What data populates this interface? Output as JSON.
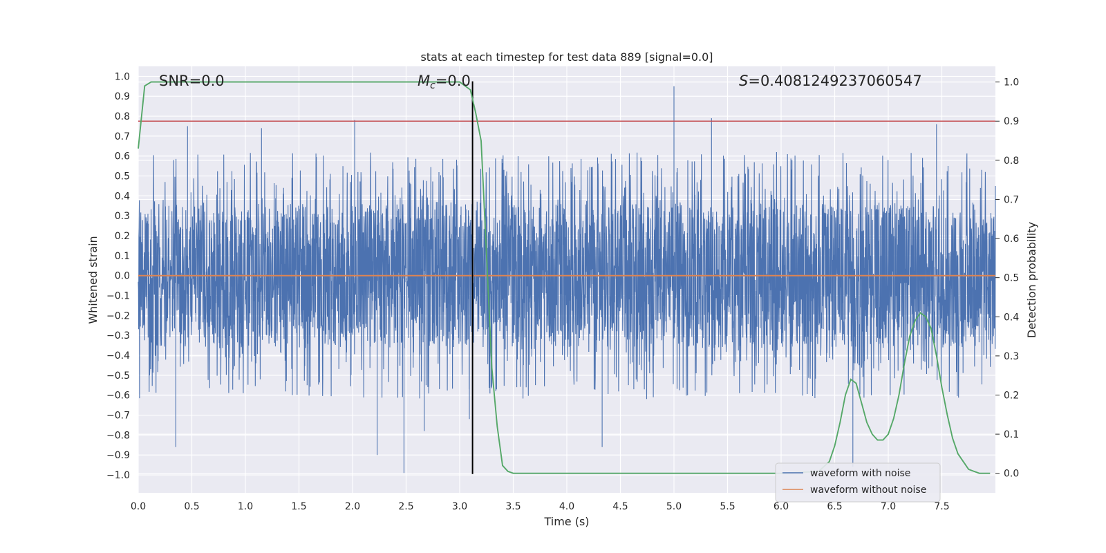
{
  "chart_data": {
    "type": "line",
    "title": "stats at each timestep for test data 889 [signal=0.0]",
    "xlabel": "Time (s)",
    "ylabel_left": "Whitened strain",
    "ylabel_right": "Detection probability",
    "xlim": [
      0,
      8
    ],
    "ylim_left": [
      -1.09,
      1.05
    ],
    "ylim_right": [
      -0.05,
      1.04
    ],
    "x_ticks": [
      0.0,
      0.5,
      1.0,
      1.5,
      2.0,
      2.5,
      3.0,
      3.5,
      4.0,
      4.5,
      5.0,
      5.5,
      6.0,
      6.5,
      7.0,
      7.5
    ],
    "x_tick_labels": [
      "0.0",
      "0.5",
      "1.0",
      "1.5",
      "2.0",
      "2.5",
      "3.0",
      "3.5",
      "4.0",
      "4.5",
      "5.0",
      "5.5",
      "6.0",
      "6.5",
      "7.0",
      "7.5"
    ],
    "y_left_ticks": [
      1.0,
      0.9,
      0.8,
      0.7,
      0.6,
      0.5,
      0.4,
      0.3,
      0.2,
      0.1,
      0.0,
      -0.1,
      -0.2,
      -0.3,
      -0.4,
      -0.5,
      -0.6,
      -0.7,
      -0.8,
      -0.9,
      -1.0
    ],
    "y_left_tick_labels": [
      "1.0",
      "0.9",
      "0.8",
      "0.7",
      "0.6",
      "0.5",
      "0.4",
      "0.3",
      "0.2",
      "0.1",
      "0.0",
      "−0.1",
      "−0.2",
      "−0.3",
      "−0.4",
      "−0.5",
      "−0.6",
      "−0.7",
      "−0.8",
      "−0.9",
      "−1.0"
    ],
    "y_right_ticks": [
      1.0,
      0.9,
      0.8,
      0.7,
      0.6,
      0.5,
      0.4,
      0.3,
      0.2,
      0.1,
      0.0
    ],
    "y_right_tick_labels": [
      "1.0",
      "0.9",
      "0.8",
      "0.7",
      "0.6",
      "0.5",
      "0.4",
      "0.3",
      "0.2",
      "0.1",
      "0.0"
    ],
    "annotations": {
      "snr": "SNR=0.0",
      "mc_symbol": "M",
      "mc_subscript": "c",
      "mc_value": "=0.0",
      "s_symbol": "S",
      "s_value": "=0.4081249237060547"
    },
    "threshold_probability": 0.9,
    "vertical_marker_time": 3.12,
    "series": [
      {
        "name": "waveform with noise",
        "axis": "left",
        "color": "#4c72b0",
        "description": "whitened noisy strain, dense noise roughly within ±0.36 with spikes",
        "band_max": 0.36,
        "spikes": [
          {
            "t": 0.35,
            "v": -0.86
          },
          {
            "t": 0.46,
            "v": 0.75
          },
          {
            "t": 1.15,
            "v": 0.74
          },
          {
            "t": 2.02,
            "v": 0.78
          },
          {
            "t": 2.23,
            "v": -0.9
          },
          {
            "t": 2.48,
            "v": -0.99
          },
          {
            "t": 2.67,
            "v": -0.78
          },
          {
            "t": 3.09,
            "v": -0.72
          },
          {
            "t": 4.33,
            "v": -0.86
          },
          {
            "t": 5.0,
            "v": 0.95
          },
          {
            "t": 5.35,
            "v": 0.79
          },
          {
            "t": 6.67,
            "v": -0.96
          },
          {
            "t": 7.45,
            "v": 0.76
          }
        ]
      },
      {
        "name": "waveform without noise",
        "axis": "left",
        "color": "#dd8452",
        "x": [
          0.0,
          8.0
        ],
        "values": [
          0.0,
          0.0
        ]
      },
      {
        "name": "detection probability",
        "axis": "right",
        "color": "#55a868",
        "x": [
          0.0,
          0.06,
          0.12,
          0.2,
          0.5,
          1.0,
          1.5,
          2.0,
          2.5,
          2.9,
          3.0,
          3.05,
          3.1,
          3.15,
          3.2,
          3.25,
          3.3,
          3.35,
          3.4,
          3.45,
          3.5,
          4.0,
          5.0,
          6.0,
          6.35,
          6.45,
          6.5,
          6.55,
          6.6,
          6.65,
          6.7,
          6.75,
          6.8,
          6.85,
          6.9,
          6.95,
          7.0,
          7.05,
          7.1,
          7.15,
          7.2,
          7.25,
          7.3,
          7.35,
          7.4,
          7.45,
          7.5,
          7.55,
          7.6,
          7.65,
          7.7,
          7.75,
          7.8,
          7.85,
          7.9,
          7.95
        ],
        "values": [
          0.83,
          0.99,
          1.0,
          1.0,
          1.0,
          1.0,
          1.0,
          1.0,
          1.0,
          1.0,
          1.0,
          0.99,
          0.98,
          0.92,
          0.85,
          0.56,
          0.27,
          0.12,
          0.02,
          0.005,
          0.0,
          0.0,
          0.0,
          0.0,
          0.005,
          0.03,
          0.07,
          0.13,
          0.2,
          0.24,
          0.23,
          0.18,
          0.13,
          0.1,
          0.085,
          0.085,
          0.1,
          0.14,
          0.2,
          0.28,
          0.35,
          0.39,
          0.41,
          0.4,
          0.37,
          0.3,
          0.22,
          0.15,
          0.09,
          0.05,
          0.03,
          0.01,
          0.005,
          0.0,
          0.0,
          0.0
        ]
      }
    ],
    "legend": {
      "position": "lower-right",
      "entries": [
        {
          "label": "waveform with noise",
          "color": "#4c72b0"
        },
        {
          "label": "waveform without noise",
          "color": "#dd8452"
        }
      ]
    },
    "colors": {
      "background": "#eaeaf2",
      "grid": "#ffffff",
      "threshold": "#c44e52",
      "marker": "#000000"
    }
  }
}
